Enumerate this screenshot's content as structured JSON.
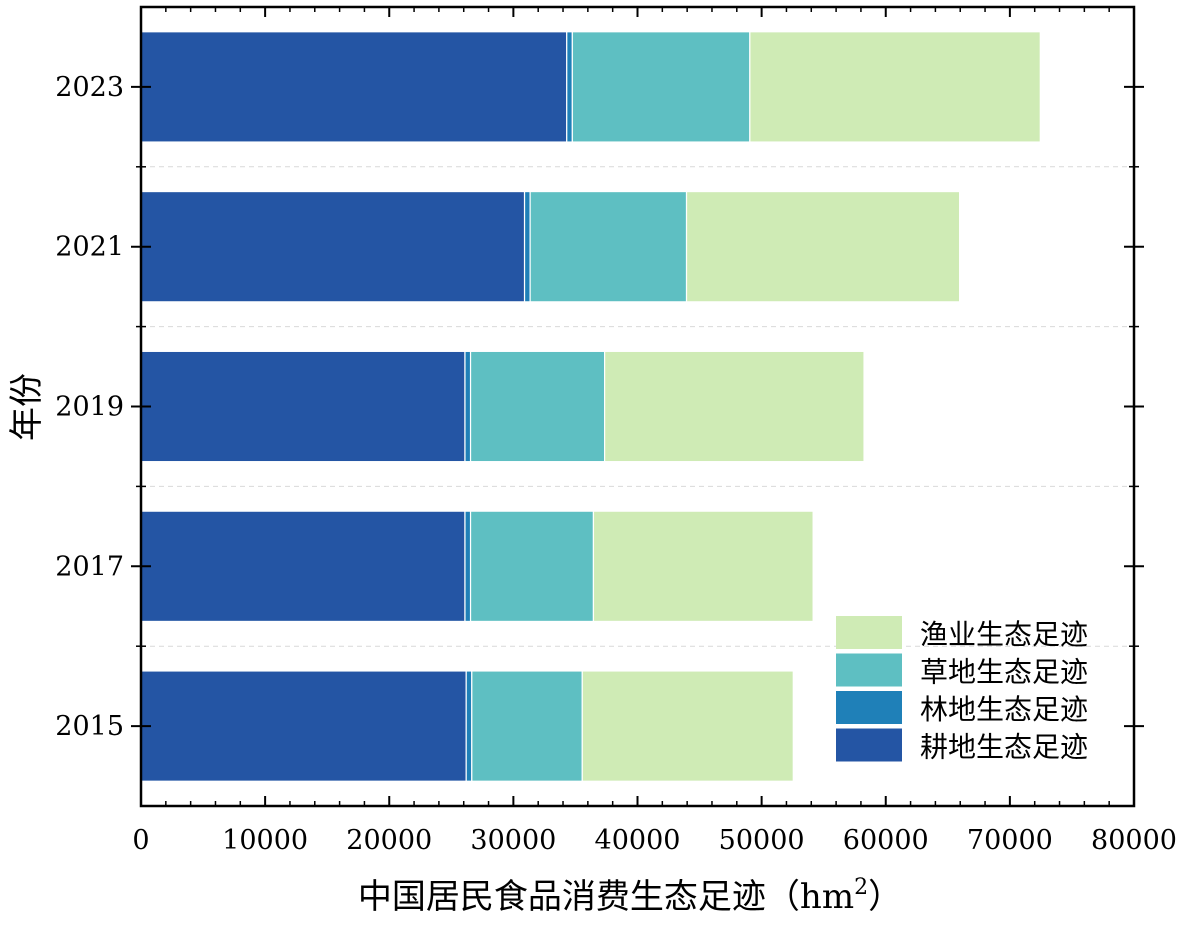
{
  "chart_data": {
    "type": "bar",
    "orientation": "horizontal",
    "stacked": true,
    "title": "",
    "xlabel": "中国居民食品消费生态足迹（hm",
    "xlabel_superscript": "2",
    "xlabel_suffix": "）",
    "ylabel": "年份",
    "xlim": [
      0,
      80000
    ],
    "xticks": [
      0,
      10000,
      20000,
      30000,
      40000,
      50000,
      60000,
      70000,
      80000
    ],
    "xtick_labels": [
      "0",
      "10000",
      "20000",
      "30000",
      "40000",
      "50000",
      "60000",
      "70000",
      "80000"
    ],
    "categories": [
      "2015",
      "2017",
      "2019",
      "2021",
      "2023"
    ],
    "grid": "horizontal dashed between categories",
    "legend_position": "lower-right",
    "series": [
      {
        "name": "耕地生态足迹",
        "color": "#2455a4",
        "values": [
          26200,
          26100,
          26100,
          30900,
          34300
        ]
      },
      {
        "name": "林地生态足迹",
        "color": "#1f80b8",
        "values": [
          450,
          450,
          450,
          450,
          450
        ]
      },
      {
        "name": "草地生态足迹",
        "color": "#5ebfc2",
        "values": [
          8900,
          9900,
          10800,
          12600,
          14300
        ]
      },
      {
        "name": "渔业生态足迹",
        "color": "#cfebb5",
        "values": [
          17000,
          17700,
          20900,
          22000,
          23400
        ]
      }
    ],
    "legend_order": [
      "渔业生态足迹",
      "草地生态足迹",
      "林地生态足迹",
      "耕地生态足迹"
    ]
  }
}
